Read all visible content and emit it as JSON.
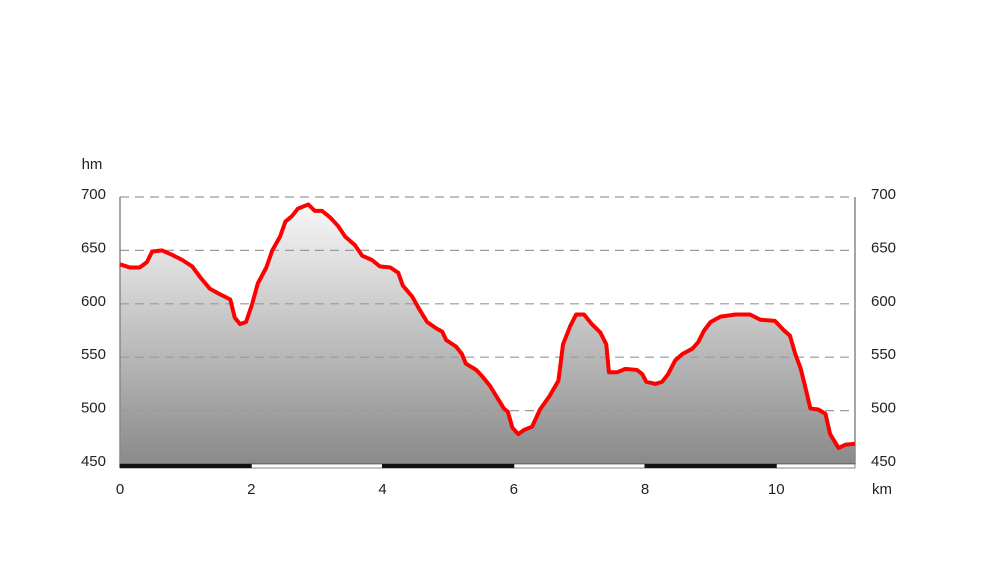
{
  "chart_data": {
    "type": "area",
    "y_label": "hm",
    "x_label": "km",
    "x": [
      0,
      0.15,
      0.3,
      0.41,
      0.49,
      0.64,
      0.79,
      0.95,
      1.1,
      1.22,
      1.37,
      1.52,
      1.68,
      1.75,
      1.83,
      1.92,
      2.01,
      2.1,
      2.23,
      2.32,
      2.44,
      2.52,
      2.62,
      2.71,
      2.87,
      2.97,
      3.08,
      3.2,
      3.32,
      3.43,
      3.58,
      3.69,
      3.84,
      3.96,
      4.12,
      4.24,
      4.31,
      4.45,
      4.57,
      4.68,
      4.82,
      4.91,
      4.97,
      5.12,
      5.21,
      5.27,
      5.43,
      5.52,
      5.64,
      5.75,
      5.85,
      5.91,
      5.98,
      6.07,
      6.16,
      6.28,
      6.4,
      6.55,
      6.68,
      6.75,
      6.86,
      6.95,
      7.07,
      7.19,
      7.32,
      7.41,
      7.45,
      7.58,
      7.7,
      7.88,
      7.96,
      8.02,
      8.16,
      8.26,
      8.35,
      8.46,
      8.57,
      8.72,
      8.81,
      8.9,
      9.0,
      9.15,
      9.38,
      9.6,
      9.76,
      9.98,
      10.12,
      10.21,
      10.29,
      10.37,
      10.43,
      10.52,
      10.64,
      10.75,
      10.82,
      10.95,
      11.05,
      11.2
    ],
    "values": [
      637,
      634,
      634,
      639,
      649,
      650,
      646,
      641,
      635,
      625,
      614,
      609,
      604,
      587,
      581,
      583,
      599,
      619,
      634,
      650,
      663,
      677,
      682,
      689,
      693,
      687,
      687,
      681,
      673,
      663,
      655,
      645,
      641,
      635,
      634,
      629,
      617,
      607,
      594,
      583,
      577,
      574,
      566,
      560,
      553,
      544,
      538,
      532,
      523,
      512,
      502,
      499,
      484,
      478,
      482,
      485,
      501,
      514,
      528,
      562,
      579,
      590,
      590,
      581,
      573,
      562,
      536,
      536,
      539,
      538,
      534,
      527,
      525,
      527,
      534,
      547,
      553,
      558,
      564,
      575,
      583,
      588,
      590,
      590,
      585,
      584,
      575,
      570,
      553,
      540,
      525,
      502,
      501,
      497,
      478,
      465,
      468,
      469
    ],
    "color": "#ff0000",
    "xlim": [
      0,
      11.2
    ],
    "ylim": [
      450,
      700
    ],
    "xticks": [
      0,
      2,
      4,
      6,
      8,
      10
    ],
    "yticks": [
      450,
      500,
      550,
      600,
      650,
      700
    ],
    "grid": true
  }
}
